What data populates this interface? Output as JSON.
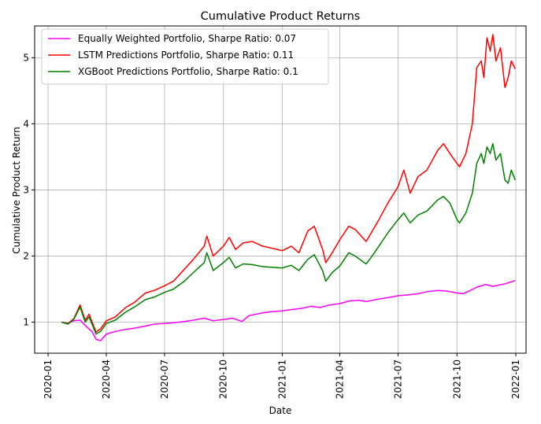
{
  "chart_data": {
    "type": "line",
    "title": "Cumulative Product Returns",
    "xlabel": "Date",
    "ylabel": "Cumulative Product Return",
    "x_ticks": [
      "2020-01",
      "2020-04",
      "2020-07",
      "2020-10",
      "2021-01",
      "2021-04",
      "2021-07",
      "2021-10",
      "2022-01"
    ],
    "y_ticks": [
      1,
      2,
      3,
      4,
      5
    ],
    "xlim": [
      "2019-12-11",
      "2022-01-17"
    ],
    "ylim": [
      0.53,
      5.48
    ],
    "grid": true,
    "legend_position": "top-left",
    "series": [
      {
        "name": "Equally Weighted Portfolio, Sharpe Ratio: 0.07",
        "color": "#ff00ff",
        "points": [
          [
            "2020-01-22",
            1.0
          ],
          [
            "2020-02-01",
            0.98
          ],
          [
            "2020-02-10",
            1.02
          ],
          [
            "2020-02-20",
            1.03
          ],
          [
            "2020-02-28",
            0.95
          ],
          [
            "2020-03-10",
            0.85
          ],
          [
            "2020-03-16",
            0.74
          ],
          [
            "2020-03-23",
            0.72
          ],
          [
            "2020-04-01",
            0.82
          ],
          [
            "2020-04-15",
            0.86
          ],
          [
            "2020-05-01",
            0.89
          ],
          [
            "2020-05-15",
            0.91
          ],
          [
            "2020-06-01",
            0.94
          ],
          [
            "2020-06-15",
            0.97
          ],
          [
            "2020-07-01",
            0.98
          ],
          [
            "2020-07-15",
            0.99
          ],
          [
            "2020-08-01",
            1.01
          ],
          [
            "2020-08-15",
            1.03
          ],
          [
            "2020-09-01",
            1.06
          ],
          [
            "2020-09-15",
            1.02
          ],
          [
            "2020-10-01",
            1.04
          ],
          [
            "2020-10-15",
            1.06
          ],
          [
            "2020-10-30",
            1.01
          ],
          [
            "2020-11-10",
            1.1
          ],
          [
            "2020-12-01",
            1.14
          ],
          [
            "2020-12-15",
            1.16
          ],
          [
            "2021-01-01",
            1.17
          ],
          [
            "2021-01-15",
            1.19
          ],
          [
            "2021-02-01",
            1.21
          ],
          [
            "2021-02-15",
            1.24
          ],
          [
            "2021-03-01",
            1.22
          ],
          [
            "2021-03-15",
            1.26
          ],
          [
            "2021-04-01",
            1.28
          ],
          [
            "2021-04-15",
            1.32
          ],
          [
            "2021-05-01",
            1.33
          ],
          [
            "2021-05-12",
            1.31
          ],
          [
            "2021-06-01",
            1.35
          ],
          [
            "2021-06-15",
            1.37
          ],
          [
            "2021-07-01",
            1.4
          ],
          [
            "2021-07-15",
            1.41
          ],
          [
            "2021-08-01",
            1.43
          ],
          [
            "2021-08-15",
            1.46
          ],
          [
            "2021-09-01",
            1.48
          ],
          [
            "2021-09-15",
            1.47
          ],
          [
            "2021-10-01",
            1.44
          ],
          [
            "2021-10-10",
            1.43
          ],
          [
            "2021-10-20",
            1.47
          ],
          [
            "2021-11-01",
            1.53
          ],
          [
            "2021-11-15",
            1.57
          ],
          [
            "2021-11-26",
            1.54
          ],
          [
            "2021-12-05",
            1.56
          ],
          [
            "2021-12-15",
            1.58
          ],
          [
            "2021-12-31",
            1.63
          ]
        ]
      },
      {
        "name": "LSTM Predictions Portfolio, Sharpe Ratio: 0.11",
        "color": "#ff0000",
        "points": [
          [
            "2020-01-22",
            1.0
          ],
          [
            "2020-02-01",
            0.98
          ],
          [
            "2020-02-10",
            1.05
          ],
          [
            "2020-02-20",
            1.26
          ],
          [
            "2020-02-28",
            1.03
          ],
          [
            "2020-03-05",
            1.12
          ],
          [
            "2020-03-16",
            0.85
          ],
          [
            "2020-03-23",
            0.9
          ],
          [
            "2020-04-01",
            1.02
          ],
          [
            "2020-04-15",
            1.08
          ],
          [
            "2020-05-01",
            1.22
          ],
          [
            "2020-05-15",
            1.3
          ],
          [
            "2020-06-01",
            1.44
          ],
          [
            "2020-06-15",
            1.48
          ],
          [
            "2020-07-01",
            1.55
          ],
          [
            "2020-07-15",
            1.62
          ],
          [
            "2020-08-01",
            1.8
          ],
          [
            "2020-08-15",
            1.95
          ],
          [
            "2020-09-01",
            2.15
          ],
          [
            "2020-09-05",
            2.3
          ],
          [
            "2020-09-15",
            2.0
          ],
          [
            "2020-10-01",
            2.15
          ],
          [
            "2020-10-10",
            2.28
          ],
          [
            "2020-10-20",
            2.1
          ],
          [
            "2020-11-01",
            2.2
          ],
          [
            "2020-11-15",
            2.22
          ],
          [
            "2020-12-01",
            2.15
          ],
          [
            "2020-12-15",
            2.12
          ],
          [
            "2021-01-01",
            2.08
          ],
          [
            "2021-01-15",
            2.15
          ],
          [
            "2021-01-27",
            2.05
          ],
          [
            "2021-02-10",
            2.38
          ],
          [
            "2021-02-20",
            2.45
          ],
          [
            "2021-03-05",
            2.1
          ],
          [
            "2021-03-10",
            1.9
          ],
          [
            "2021-03-20",
            2.05
          ],
          [
            "2021-04-01",
            2.25
          ],
          [
            "2021-04-15",
            2.45
          ],
          [
            "2021-04-25",
            2.4
          ],
          [
            "2021-05-12",
            2.22
          ],
          [
            "2021-05-20",
            2.35
          ],
          [
            "2021-06-01",
            2.55
          ],
          [
            "2021-06-15",
            2.8
          ],
          [
            "2021-07-01",
            3.05
          ],
          [
            "2021-07-10",
            3.3
          ],
          [
            "2021-07-20",
            2.95
          ],
          [
            "2021-08-01",
            3.2
          ],
          [
            "2021-08-15",
            3.3
          ],
          [
            "2021-09-01",
            3.6
          ],
          [
            "2021-09-10",
            3.7
          ],
          [
            "2021-09-20",
            3.55
          ],
          [
            "2021-10-01",
            3.4
          ],
          [
            "2021-10-05",
            3.35
          ],
          [
            "2021-10-15",
            3.55
          ],
          [
            "2021-10-25",
            4.0
          ],
          [
            "2021-11-01",
            4.85
          ],
          [
            "2021-11-08",
            4.95
          ],
          [
            "2021-11-12",
            4.7
          ],
          [
            "2021-11-17",
            5.3
          ],
          [
            "2021-11-22",
            5.1
          ],
          [
            "2021-11-26",
            5.35
          ],
          [
            "2021-12-01",
            4.95
          ],
          [
            "2021-12-08",
            5.15
          ],
          [
            "2021-12-15",
            4.55
          ],
          [
            "2021-12-20",
            4.7
          ],
          [
            "2021-12-25",
            4.95
          ],
          [
            "2021-12-31",
            4.83
          ]
        ]
      },
      {
        "name": "XGBoot Predictions Portfolio, Sharpe Ratio: 0.1",
        "color": "#008000",
        "points": [
          [
            "2020-01-22",
            1.0
          ],
          [
            "2020-02-01",
            0.97
          ],
          [
            "2020-02-10",
            1.04
          ],
          [
            "2020-02-20",
            1.23
          ],
          [
            "2020-02-28",
            1.0
          ],
          [
            "2020-03-05",
            1.08
          ],
          [
            "2020-03-16",
            0.82
          ],
          [
            "2020-03-23",
            0.86
          ],
          [
            "2020-04-01",
            0.98
          ],
          [
            "2020-04-15",
            1.03
          ],
          [
            "2020-05-01",
            1.15
          ],
          [
            "2020-05-15",
            1.23
          ],
          [
            "2020-06-01",
            1.34
          ],
          [
            "2020-06-15",
            1.38
          ],
          [
            "2020-07-01",
            1.45
          ],
          [
            "2020-07-15",
            1.5
          ],
          [
            "2020-08-01",
            1.62
          ],
          [
            "2020-08-15",
            1.75
          ],
          [
            "2020-09-01",
            1.9
          ],
          [
            "2020-09-05",
            2.05
          ],
          [
            "2020-09-15",
            1.78
          ],
          [
            "2020-10-01",
            1.9
          ],
          [
            "2020-10-10",
            1.98
          ],
          [
            "2020-10-20",
            1.82
          ],
          [
            "2020-11-01",
            1.88
          ],
          [
            "2020-11-15",
            1.87
          ],
          [
            "2020-12-01",
            1.84
          ],
          [
            "2020-12-15",
            1.83
          ],
          [
            "2021-01-01",
            1.82
          ],
          [
            "2021-01-15",
            1.86
          ],
          [
            "2021-01-27",
            1.78
          ],
          [
            "2021-02-10",
            1.95
          ],
          [
            "2021-02-20",
            2.02
          ],
          [
            "2021-03-05",
            1.78
          ],
          [
            "2021-03-10",
            1.62
          ],
          [
            "2021-03-20",
            1.75
          ],
          [
            "2021-04-01",
            1.85
          ],
          [
            "2021-04-15",
            2.05
          ],
          [
            "2021-04-25",
            2.0
          ],
          [
            "2021-05-12",
            1.88
          ],
          [
            "2021-05-20",
            1.98
          ],
          [
            "2021-06-01",
            2.15
          ],
          [
            "2021-06-15",
            2.35
          ],
          [
            "2021-07-01",
            2.55
          ],
          [
            "2021-07-10",
            2.65
          ],
          [
            "2021-07-20",
            2.5
          ],
          [
            "2021-08-01",
            2.62
          ],
          [
            "2021-08-15",
            2.68
          ],
          [
            "2021-09-01",
            2.85
          ],
          [
            "2021-09-10",
            2.9
          ],
          [
            "2021-09-20",
            2.8
          ],
          [
            "2021-10-01",
            2.55
          ],
          [
            "2021-10-05",
            2.5
          ],
          [
            "2021-10-15",
            2.65
          ],
          [
            "2021-10-25",
            2.95
          ],
          [
            "2021-11-01",
            3.4
          ],
          [
            "2021-11-08",
            3.55
          ],
          [
            "2021-11-12",
            3.4
          ],
          [
            "2021-11-17",
            3.65
          ],
          [
            "2021-11-22",
            3.55
          ],
          [
            "2021-11-26",
            3.7
          ],
          [
            "2021-12-01",
            3.45
          ],
          [
            "2021-12-08",
            3.55
          ],
          [
            "2021-12-15",
            3.15
          ],
          [
            "2021-12-20",
            3.1
          ],
          [
            "2021-12-25",
            3.3
          ],
          [
            "2021-12-31",
            3.15
          ]
        ]
      }
    ]
  }
}
